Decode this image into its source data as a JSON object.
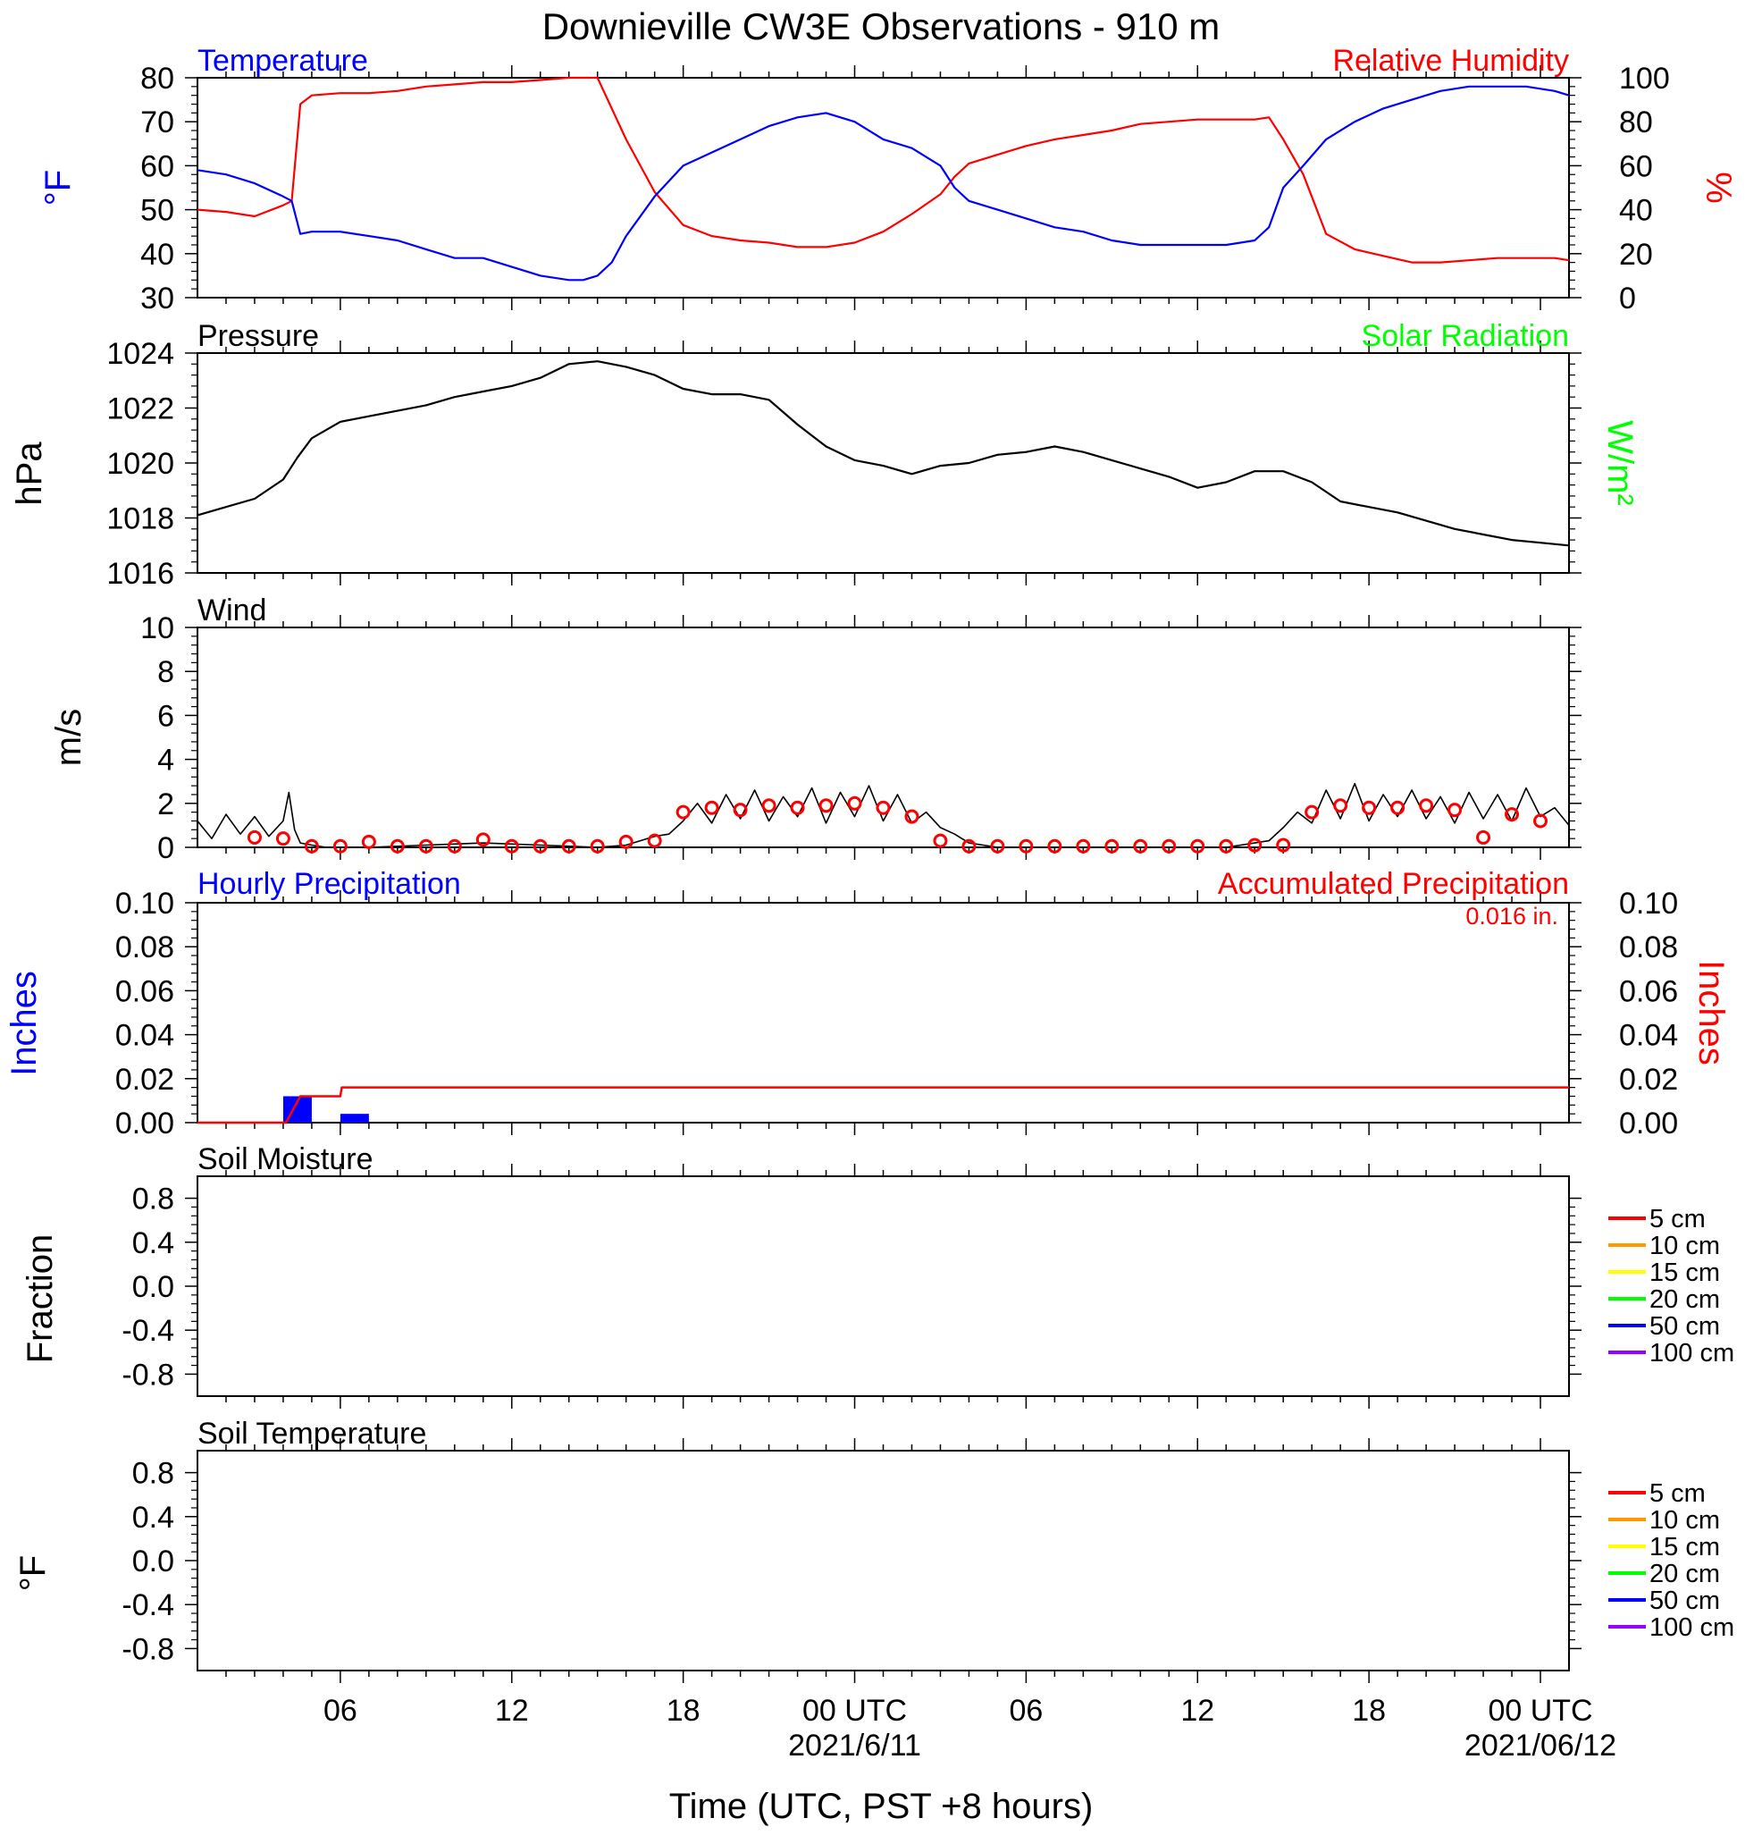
{
  "title": "Downieville CW3E Observations - 910 m",
  "colors": {
    "temperature": "#0000ff",
    "humidity": "#ff0000",
    "pressure": "#000000",
    "solar": "#00ff00",
    "wind": "#000000",
    "wind_avg": "#ff0000",
    "precip_hourly": "#0000ff",
    "precip_accum": "#ff0000",
    "legend": [
      "#ff0000",
      "#ff9900",
      "#ffff00",
      "#00ff00",
      "#0000ff",
      "#9900ff"
    ]
  },
  "x_axis": {
    "title": "Time (UTC, PST +8 hours)",
    "range_hours": [
      0,
      48
    ],
    "ticks": [
      {
        "hour": 5,
        "label": "06",
        "date": ""
      },
      {
        "hour": 11,
        "label": "12",
        "date": ""
      },
      {
        "hour": 17,
        "label": "18",
        "date": ""
      },
      {
        "hour": 23,
        "label": "00 UTC",
        "date": "2021/6/11"
      },
      {
        "hour": 29,
        "label": "06",
        "date": ""
      },
      {
        "hour": 35,
        "label": "12",
        "date": ""
      },
      {
        "hour": 41,
        "label": "18",
        "date": ""
      },
      {
        "hour": 47,
        "label": "00 UTC",
        "date": "2021/06/12"
      }
    ]
  },
  "chart_data": [
    {
      "type": "line",
      "panel": "temperature_humidity",
      "left_title": "Temperature",
      "right_title": "Relative Humidity",
      "ylabel_left": "°F",
      "ylabel_right": "%",
      "ylim_left": [
        30,
        80
      ],
      "yticks_left": [
        30,
        40,
        50,
        60,
        70,
        80
      ],
      "ylim_right": [
        0,
        100
      ],
      "yticks_right": [
        0,
        20,
        40,
        60,
        80,
        100
      ],
      "x_hours": [
        0,
        1,
        2,
        3,
        3.3,
        3.6,
        4,
        5,
        6,
        7,
        8,
        9,
        10,
        11,
        12,
        13,
        13.5,
        14,
        14.5,
        15,
        16,
        17,
        18,
        19,
        20,
        21,
        22,
        23,
        24,
        25,
        26,
        26.5,
        27,
        28,
        29,
        30,
        31,
        32,
        33,
        34,
        35,
        36,
        37,
        37.5,
        38,
        38.7,
        39.5,
        40.5,
        41.5,
        42.5,
        43.5,
        44.5,
        45.5,
        46.5,
        47.5,
        48
      ],
      "series": [
        {
          "name": "Temperature",
          "axis": "left",
          "values": [
            59,
            58,
            56,
            53,
            52,
            44.5,
            45,
            45,
            44,
            43,
            41,
            39,
            39,
            37,
            35,
            34,
            34,
            35,
            38,
            44,
            53,
            60,
            63,
            66,
            69,
            71,
            72,
            70,
            66,
            64,
            60,
            55,
            52,
            50,
            48,
            46,
            45,
            43,
            42,
            42,
            42,
            42,
            43,
            46,
            55,
            60,
            66,
            70,
            73,
            75,
            77,
            78,
            78,
            78,
            77,
            76
          ]
        },
        {
          "name": "Relative Humidity",
          "axis": "right",
          "values": [
            40,
            39,
            37,
            42,
            44,
            88,
            92,
            93,
            93,
            94,
            96,
            97,
            98,
            98,
            99,
            100,
            100,
            100,
            86,
            72,
            48,
            33,
            28,
            26,
            25,
            23,
            23,
            25,
            30,
            38,
            47,
            55,
            61,
            65,
            69,
            72,
            74,
            76,
            79,
            80,
            81,
            81,
            81,
            82,
            72,
            56,
            29,
            22,
            19,
            16,
            16,
            17,
            18,
            18,
            18,
            17
          ]
        }
      ]
    },
    {
      "type": "line",
      "panel": "pressure",
      "left_title": "Pressure",
      "right_title": "Solar Radiation",
      "ylabel_left": "hPa",
      "ylabel_right": "W/m²",
      "ylim_left": [
        1016,
        1024
      ],
      "yticks_left": [
        1016,
        1018,
        1020,
        1022,
        1024
      ],
      "x_hours": [
        0,
        1,
        2,
        3,
        3.5,
        4,
        5,
        6,
        7,
        8,
        9,
        10,
        11,
        12,
        13,
        14,
        15,
        16,
        17,
        18,
        19,
        20,
        21,
        22,
        23,
        24,
        25,
        26,
        27,
        28,
        29,
        30,
        31,
        32,
        33,
        34,
        35,
        36,
        37,
        38,
        39,
        40,
        41,
        42,
        43,
        44,
        45,
        46,
        47,
        48
      ],
      "series": [
        {
          "name": "Pressure",
          "axis": "left",
          "values": [
            1018.1,
            1018.4,
            1018.7,
            1019.4,
            1020.2,
            1020.9,
            1021.5,
            1021.7,
            1021.9,
            1022.1,
            1022.4,
            1022.6,
            1022.8,
            1023.1,
            1023.6,
            1023.7,
            1023.5,
            1023.2,
            1022.7,
            1022.5,
            1022.5,
            1022.3,
            1021.4,
            1020.6,
            1020.1,
            1019.9,
            1019.6,
            1019.9,
            1020.0,
            1020.3,
            1020.4,
            1020.6,
            1020.4,
            1020.1,
            1019.8,
            1019.5,
            1019.1,
            1019.3,
            1019.7,
            1019.7,
            1019.3,
            1018.6,
            1018.4,
            1018.2,
            1017.9,
            1017.6,
            1017.4,
            1017.2,
            1017.1,
            1017.0
          ]
        }
      ]
    },
    {
      "type": "line",
      "panel": "wind",
      "left_title": "Wind",
      "ylabel_left": "m/s",
      "ylim_left": [
        0,
        10
      ],
      "yticks_left": [
        0,
        2,
        4,
        6,
        8,
        10
      ],
      "x_hours": [
        0,
        0.5,
        1,
        1.5,
        2,
        2.5,
        3,
        3.2,
        3.4,
        3.6,
        4,
        4.5,
        5,
        6,
        8,
        10,
        12,
        14,
        15,
        15.5,
        16,
        16.5,
        17,
        17.5,
        18,
        18.5,
        19,
        19.5,
        20,
        20.5,
        21,
        21.5,
        22,
        22.5,
        23,
        23.5,
        24,
        24.5,
        25,
        25.5,
        26,
        26.5,
        27,
        28,
        30,
        32,
        34,
        36,
        37.5,
        38,
        38.5,
        39,
        39.5,
        40,
        40.5,
        41,
        41.5,
        42,
        42.5,
        43,
        43.5,
        44,
        44.5,
        45,
        45.5,
        46,
        46.5,
        47,
        47.5,
        48
      ],
      "series": [
        {
          "name": "Wind speed",
          "axis": "left",
          "values": [
            1.2,
            0.4,
            1.5,
            0.6,
            1.4,
            0.5,
            1.2,
            2.5,
            0.8,
            0.2,
            0.1,
            0.0,
            0.0,
            0.0,
            0.1,
            0.2,
            0.1,
            0.0,
            0.1,
            0.3,
            0.5,
            0.6,
            1.2,
            2.0,
            1.1,
            2.4,
            1.3,
            2.6,
            1.2,
            2.3,
            1.4,
            2.7,
            1.1,
            2.5,
            1.4,
            2.8,
            1.2,
            2.4,
            1.1,
            1.6,
            0.9,
            0.6,
            0.2,
            0.0,
            0.0,
            0.0,
            0.0,
            0.0,
            0.3,
            0.9,
            1.6,
            1.1,
            2.6,
            1.3,
            2.9,
            1.2,
            2.4,
            1.4,
            2.6,
            1.3,
            2.3,
            1.1,
            2.5,
            1.3,
            2.4,
            1.2,
            2.7,
            1.4,
            1.8,
            1.0
          ]
        }
      ],
      "hourly_avg": {
        "x_hours": [
          2,
          3,
          4,
          5,
          6,
          7,
          8,
          9,
          10,
          11,
          12,
          13,
          14,
          15,
          16,
          17,
          18,
          19,
          20,
          21,
          22,
          23,
          24,
          25,
          26,
          27,
          28,
          29,
          30,
          31,
          32,
          33,
          34,
          35,
          36,
          37,
          38,
          39,
          40,
          41,
          42,
          43,
          44,
          45,
          46,
          47
        ],
        "values": [
          0.45,
          0.4,
          0.05,
          0.05,
          0.25,
          0.05,
          0.05,
          0.05,
          0.35,
          0.05,
          0.05,
          0.05,
          0.05,
          0.25,
          0.3,
          1.6,
          1.8,
          1.7,
          1.9,
          1.8,
          1.9,
          2.0,
          1.8,
          1.4,
          0.3,
          0.05,
          0.05,
          0.05,
          0.05,
          0.05,
          0.05,
          0.05,
          0.05,
          0.05,
          0.05,
          0.1,
          0.1,
          1.6,
          1.9,
          1.8,
          1.8,
          1.9,
          1.7,
          0.45,
          1.5,
          1.2
        ]
      }
    },
    {
      "type": "bar",
      "panel": "precipitation",
      "left_title": "Hourly Precipitation",
      "right_title": "Accumulated Precipitation",
      "annotation": "0.016 in.",
      "ylabel_left": "Inches",
      "ylabel_right": "Inches",
      "ylim_left": [
        0,
        0.1
      ],
      "yticks_left": [
        "0.00",
        "0.02",
        "0.04",
        "0.06",
        "0.08",
        "0.10"
      ],
      "ylim_right": [
        0,
        0.1
      ],
      "yticks_right": [
        "0.00",
        "0.02",
        "0.04",
        "0.06",
        "0.08",
        "0.10"
      ],
      "hourly_bars": {
        "x_hours": [
          3,
          5
        ],
        "values": [
          0.012,
          0.004
        ]
      },
      "accumulated": {
        "x_hours": [
          0,
          3.1,
          3.6,
          5.0,
          5.05,
          48
        ],
        "values": [
          0,
          0,
          0.012,
          0.012,
          0.016,
          0.016
        ]
      }
    },
    {
      "type": "line",
      "panel": "soil_moisture",
      "left_title": "Soil Moisture",
      "ylabel_left": "Fraction",
      "ylim_left": [
        -1,
        1
      ],
      "yticks_left": [
        "-0.8",
        "-0.4",
        "0.0",
        "0.4",
        "0.8"
      ],
      "legend": [
        "5 cm",
        "10 cm",
        "15 cm",
        "20 cm",
        "50 cm",
        "100 cm"
      ],
      "series": []
    },
    {
      "type": "line",
      "panel": "soil_temperature",
      "left_title": "Soil Temperature",
      "ylabel_left": "°F",
      "ylim_left": [
        -1,
        1
      ],
      "yticks_left": [
        "-0.8",
        "-0.4",
        "0.0",
        "0.4",
        "0.8"
      ],
      "legend": [
        "5 cm",
        "10 cm",
        "15 cm",
        "20 cm",
        "50 cm",
        "100 cm"
      ],
      "series": []
    }
  ]
}
